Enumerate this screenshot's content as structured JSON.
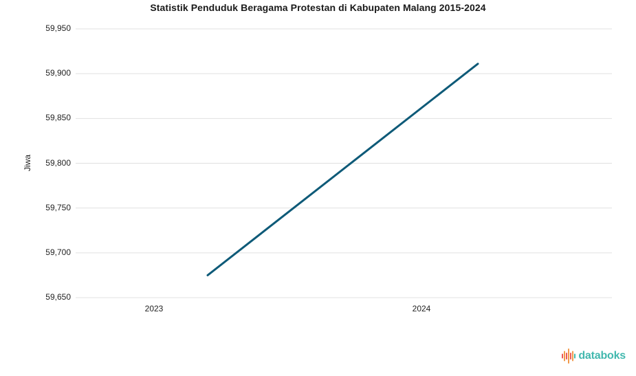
{
  "chart_data": {
    "type": "line",
    "title": "Statistik Penduduk Beragama Protestan di Kabupaten Malang 2015-2024",
    "xlabel": "",
    "ylabel": "Jiwa",
    "x": [
      2023,
      2024
    ],
    "xtick_labels": [
      "2023",
      "2024"
    ],
    "series": [
      {
        "values": [
          59675,
          59911
        ]
      }
    ],
    "ylim": [
      59650,
      59950
    ],
    "yticks": [
      59650,
      59700,
      59750,
      59800,
      59850,
      59900,
      59950
    ],
    "ytick_labels": [
      "59,650",
      "59,700",
      "59,750",
      "59,800",
      "59,850",
      "59,900",
      "59,950"
    ],
    "grid": true,
    "legend_position": "none"
  },
  "footer": {
    "brand": "databoks"
  },
  "colors": {
    "line": "#0e5a78",
    "grid": "#e0e0e0",
    "brand_teal": "#41b8ae",
    "brand_orange": "#f2994a",
    "brand_red": "#eb5757"
  }
}
